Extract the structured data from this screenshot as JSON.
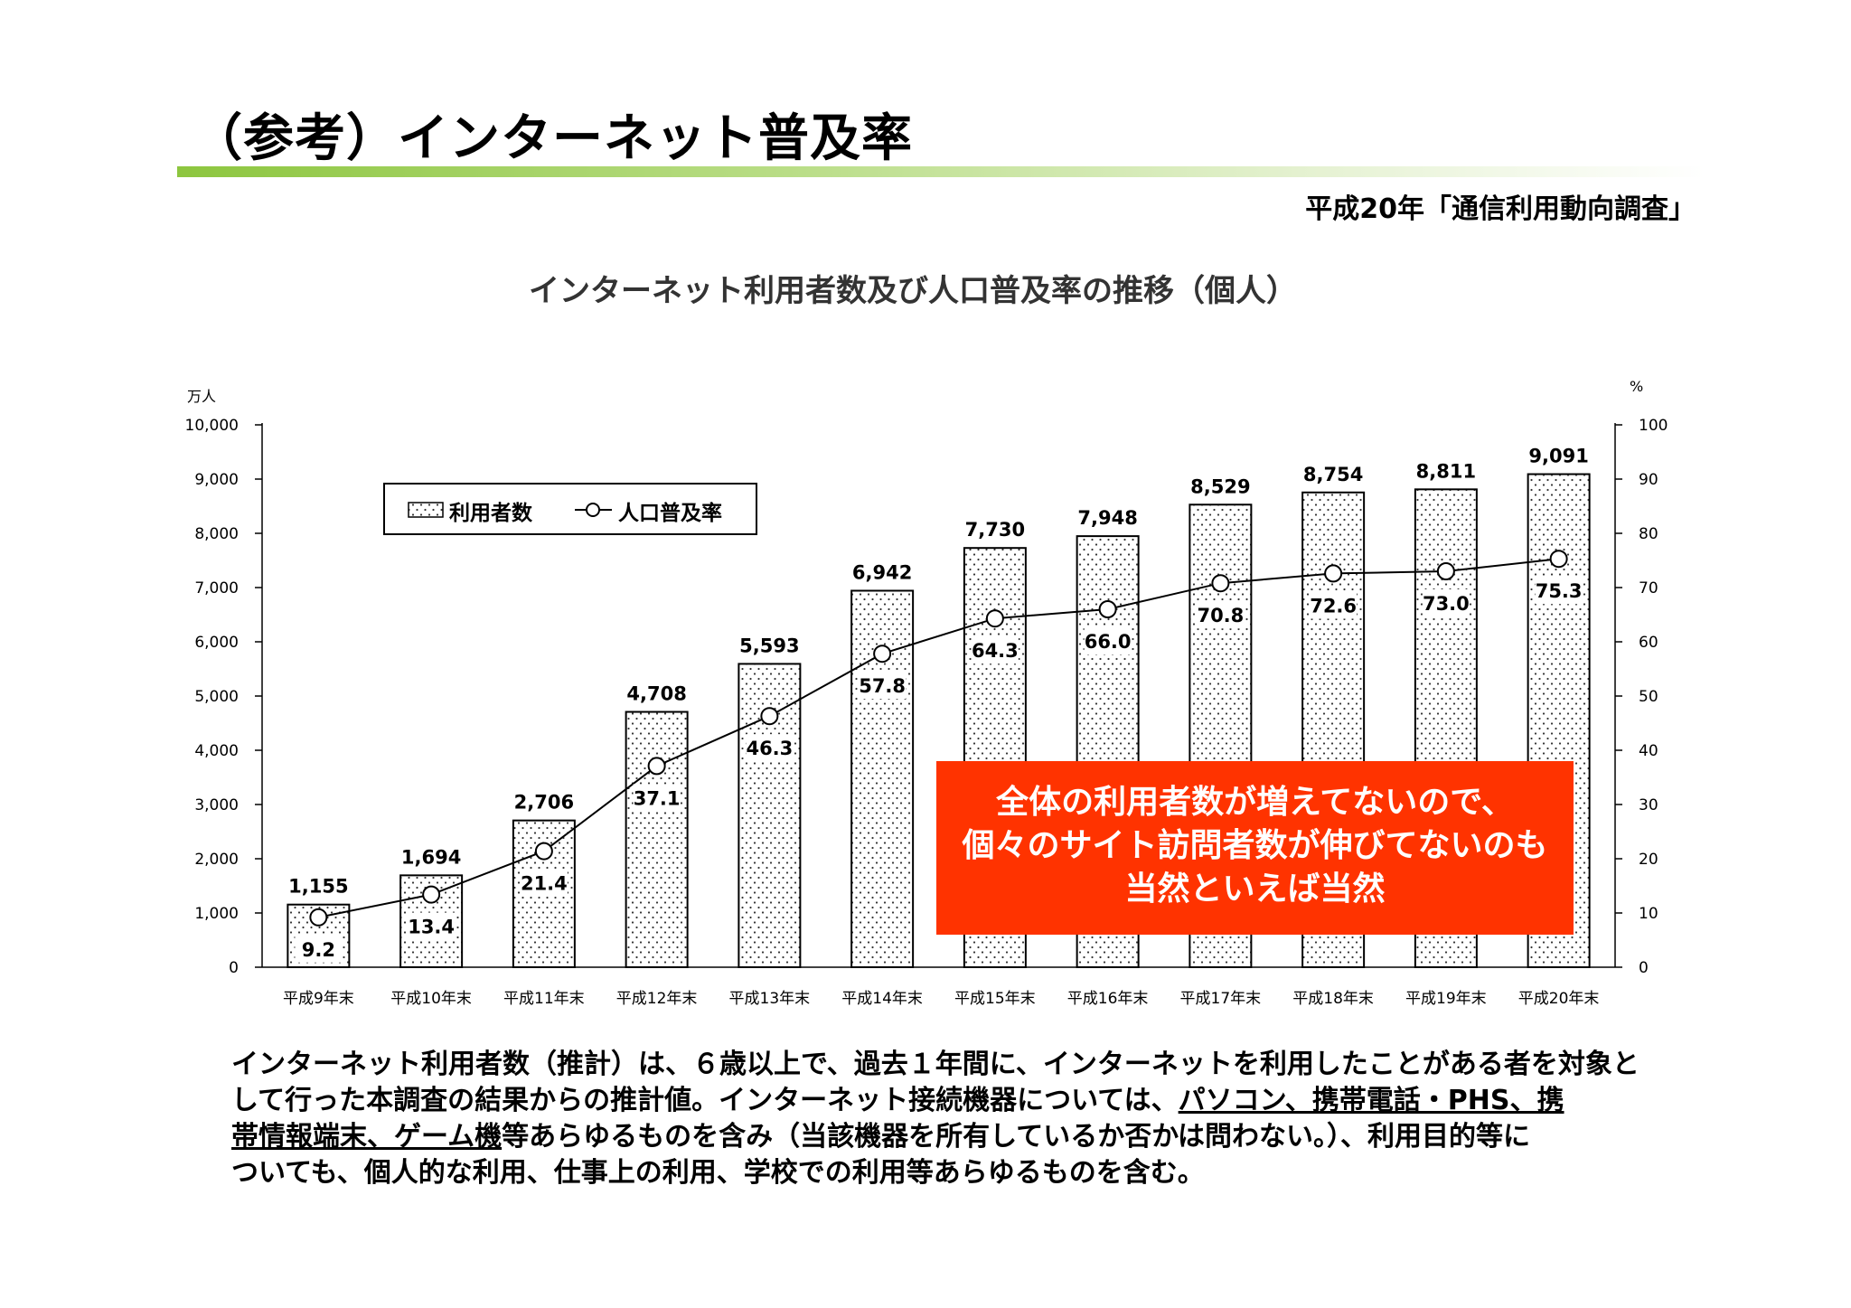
{
  "slide": {
    "title": "（参考）インターネット普及率",
    "source": "平成20年「通信利用動向調査」"
  },
  "chart_data": {
    "type": "bar",
    "title": "インターネット利用者数及び人口普及率の推移（個人）",
    "categories": [
      "平成9年末",
      "平成10年末",
      "平成11年末",
      "平成12年末",
      "平成13年末",
      "平成14年末",
      "平成15年末",
      "平成16年末",
      "平成17年末",
      "平成18年末",
      "平成19年末",
      "平成20年末"
    ],
    "series": [
      {
        "name": "利用者数",
        "type": "bar",
        "axis": "left",
        "values": [
          1155,
          1694,
          2706,
          4708,
          5593,
          6942,
          7730,
          7948,
          8529,
          8754,
          8811,
          9091
        ]
      },
      {
        "name": "人口普及率",
        "type": "line",
        "axis": "right",
        "values": [
          9.2,
          13.4,
          21.4,
          37.1,
          46.3,
          57.8,
          64.3,
          66.0,
          70.8,
          72.6,
          73.0,
          75.3
        ]
      }
    ],
    "y_left": {
      "unit": "万人",
      "range": [
        0,
        10000
      ],
      "ticks": [
        "0",
        "1,000",
        "2,000",
        "3,000",
        "4,000",
        "5,000",
        "6,000",
        "7,000",
        "8,000",
        "9,000",
        "10,000"
      ]
    },
    "y_right": {
      "unit": "%",
      "range": [
        0,
        100
      ],
      "ticks": [
        "0",
        "10",
        "20",
        "30",
        "40",
        "50",
        "60",
        "70",
        "80",
        "90",
        "100"
      ]
    },
    "bar_labels": [
      "1,155",
      "1,694",
      "2,706",
      "4,708",
      "5,593",
      "6,942",
      "7,730",
      "7,948",
      "8,529",
      "8,754",
      "8,811",
      "9,091"
    ],
    "rate_labels": [
      "9.2",
      "13.4",
      "21.4",
      "37.1",
      "46.3",
      "57.8",
      "64.3",
      "66.0",
      "70.8",
      "72.6",
      "73.0",
      "75.3"
    ],
    "legend_position": "top-left",
    "bar_pattern": "dotted",
    "grid": false
  },
  "callout": {
    "lines": [
      "全体の利用者数が増えてないので、",
      "個々のサイト訪問者数が伸びてないのも",
      "当然といえば当然"
    ],
    "color": "#ff3300"
  },
  "note": {
    "line1": "インターネット利用者数（推計）は、６歳以上で、過去１年間に、インターネットを利用したことがある者を対象と",
    "line2_pre": "して行った本調査の結果からの推計値。インターネット接続機器については、",
    "line2_u": "パソコン、携帯電話・PHS、携",
    "line3_u": "帯情報端末、ゲーム機",
    "line3_post": "等あらゆるものを含み（当該機器を所有しているか否かは問わない。）、利用目的等に",
    "line4": "ついても、個人的な利用、仕事上の利用、学校での利用等あらゆるものを含む。"
  },
  "colors": {
    "accent_green": "#8dc63f",
    "callout_red": "#ff3300"
  }
}
